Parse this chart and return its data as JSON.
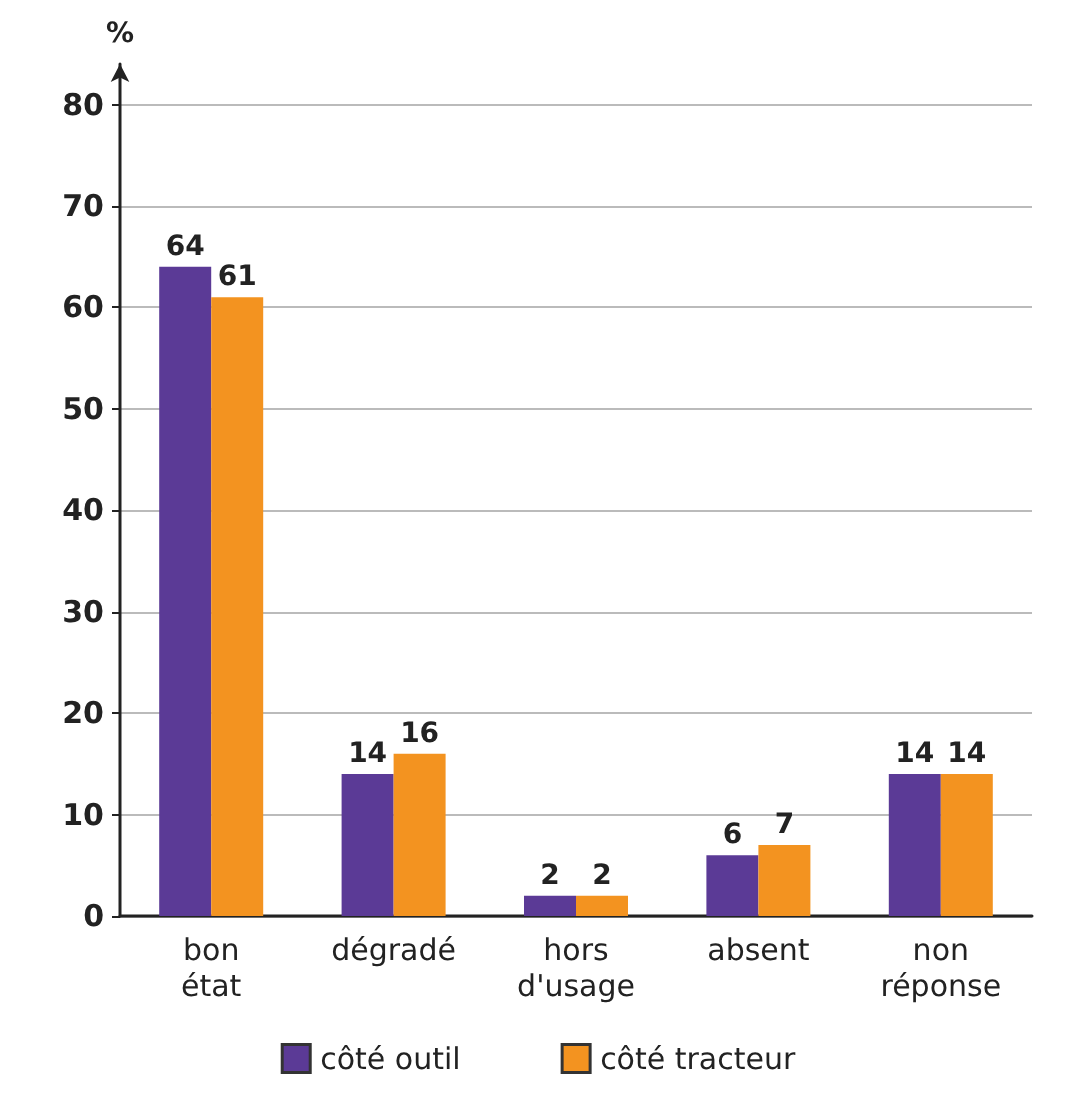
{
  "chart_data": {
    "type": "bar",
    "ylabel": "%",
    "categories": [
      "bon\nétat",
      "dégradé",
      "hors\nd'usage",
      "absent",
      "non\nréponse"
    ],
    "series": [
      {
        "name": "côté outil",
        "color": "#5b3a96",
        "values": [
          64,
          14,
          2,
          6,
          14
        ]
      },
      {
        "name": "côté tracteur",
        "color": "#f39320",
        "values": [
          61,
          16,
          2,
          7,
          14
        ]
      }
    ],
    "ylim": [
      0,
      84
    ],
    "yticks": [
      0,
      10,
      20,
      30,
      40,
      50,
      60,
      70,
      80
    ],
    "grid": "y",
    "legend": "bottom",
    "data_labels": true
  }
}
